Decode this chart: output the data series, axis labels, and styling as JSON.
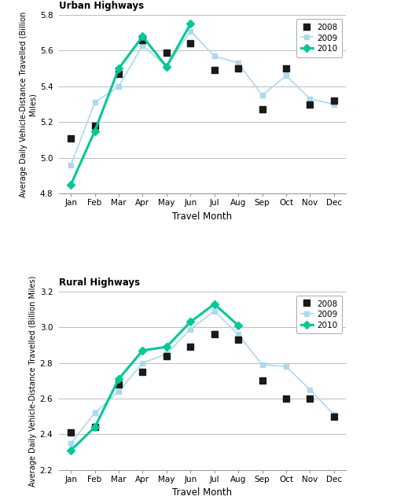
{
  "months": [
    "Jan",
    "Feb",
    "Mar",
    "Apr",
    "May",
    "Jun",
    "Jul",
    "Aug",
    "Sep",
    "Oct",
    "Nov",
    "Dec"
  ],
  "urban": {
    "title": "Urban Highways",
    "ylabel": "Average Daily Vehicle-Distance Travelled (Billion Miles)",
    "xlabel": "Travel Month",
    "ylim": [
      4.8,
      5.8
    ],
    "yticks": [
      4.8,
      5.0,
      5.2,
      5.4,
      5.6,
      5.8
    ],
    "data_2008": [
      5.11,
      5.18,
      5.47,
      5.66,
      5.59,
      5.64,
      5.49,
      5.5,
      5.27,
      5.5,
      5.3,
      5.32
    ],
    "data_2009": [
      4.96,
      5.31,
      5.4,
      5.63,
      5.51,
      5.71,
      5.57,
      5.53,
      5.35,
      5.46,
      5.33,
      5.3
    ],
    "data_2010": [
      4.85,
      5.15,
      5.5,
      5.68,
      5.51,
      5.75,
      null,
      null,
      null,
      null,
      null,
      null
    ]
  },
  "rural": {
    "title": "Rural Highways",
    "ylabel": "Average Daily Vehicle-Distance Travelled (Billion Miles)",
    "xlabel": "Travel Month",
    "ylim": [
      2.2,
      3.2
    ],
    "yticks": [
      2.2,
      2.4,
      2.6,
      2.8,
      3.0,
      3.2
    ],
    "data_2008": [
      2.41,
      2.44,
      2.68,
      2.75,
      2.84,
      2.89,
      2.96,
      2.93,
      2.7,
      2.6,
      2.6,
      2.5
    ],
    "data_2009": [
      2.35,
      2.52,
      2.64,
      2.8,
      2.85,
      2.99,
      3.09,
      2.96,
      2.79,
      2.78,
      2.65,
      2.51
    ],
    "data_2010": [
      2.31,
      2.44,
      2.71,
      2.87,
      2.89,
      3.03,
      3.13,
      3.01,
      null,
      null,
      null,
      null
    ]
  },
  "color_2008": "#1a1a1a",
  "color_2009": "#add8f0",
  "color_2010": "#00c896",
  "bg_color": "#ffffff",
  "grid_color": "#bbbbbb",
  "spine_color": "#999999"
}
